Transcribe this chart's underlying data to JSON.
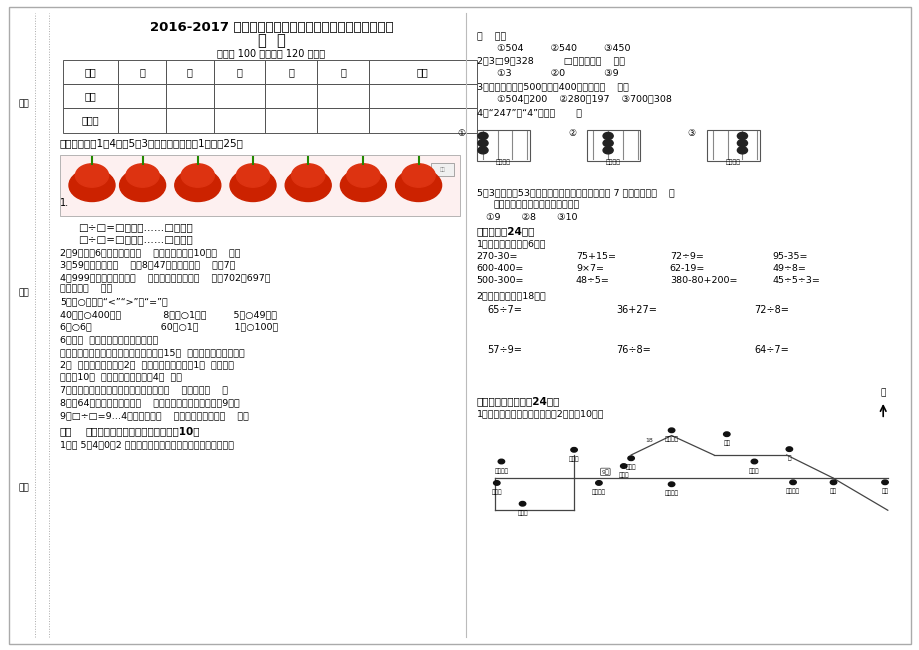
{
  "title_line1": "2016-2017 学年度第二学期二年级期中素质教育检测试卷",
  "title_line2": "数  学",
  "title_line3": "（满分 100 分，时间 120 分钟）",
  "table_headers": [
    "题号",
    "一",
    "二",
    "三",
    "四",
    "五",
    "总分"
  ],
  "table_row1": "得分",
  "table_row2": "评卷人",
  "section1_title": "一、填空。（1题4分，5题3分，其余各题每空1分。）25分",
  "section2_title": "二、",
  "section2_bold": "选择正确答案的序号填在括号里：10分",
  "section2_q1": "1、用 5、4、0、2 中的三个数字组成的数中，最大的一个数是",
  "calc_row1": [
    "270-30=",
    "75+15=",
    "72÷9=",
    "95-35="
  ],
  "calc_row2": [
    "600-400=",
    "9×7=",
    "62-19=",
    "49÷8="
  ],
  "calc_row3": [
    "500-300=",
    "48÷5=",
    "380-80+200=",
    "45÷5÷3="
  ],
  "vertical_row1": [
    "65÷7=",
    "36+27=",
    "72÷8="
  ],
  "vertical_row2": [
    "57÷9=",
    "76÷8=",
    "64÷7="
  ],
  "section4_title": "四、观察操作题（全24分）",
  "section4_sub1": "1、写出下面的行车路线（每空2分，全10分）",
  "bg_color": "#ffffff",
  "text_color": "#000000",
  "table_border": "#555555",
  "font_size_title": 9.5,
  "font_size_body": 7.5,
  "font_size_small": 6.5,
  "road_number": "9路",
  "road_number2": "18"
}
